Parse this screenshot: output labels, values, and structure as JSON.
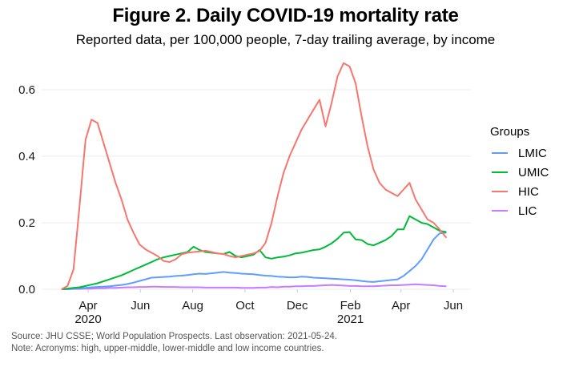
{
  "chart_data": {
    "type": "line",
    "title": "Figure 2. Daily COVID-19 mortality rate",
    "subtitle": "Reported data, per 100,000 people, 7-day trailing average, by income",
    "xlabel": "",
    "ylabel": "",
    "ylim": [
      0,
      0.68
    ],
    "yticks": [
      0.0,
      0.2,
      0.4,
      0.6
    ],
    "ytick_labels": [
      "0.0",
      "0.2",
      "0.4",
      "0.6"
    ],
    "xlim": [
      "2020-02-15",
      "2021-06-10"
    ],
    "xticks": [
      {
        "date": "2020-04-01",
        "label": "Apr",
        "sublabel": "2020"
      },
      {
        "date": "2020-06-01",
        "label": "Jun",
        "sublabel": ""
      },
      {
        "date": "2020-08-01",
        "label": "Aug",
        "sublabel": ""
      },
      {
        "date": "2020-10-01",
        "label": "Oct",
        "sublabel": ""
      },
      {
        "date": "2020-12-01",
        "label": "Dec",
        "sublabel": ""
      },
      {
        "date": "2021-02-01",
        "label": "Feb",
        "sublabel": "2021"
      },
      {
        "date": "2021-04-01",
        "label": "Apr",
        "sublabel": ""
      },
      {
        "date": "2021-06-01",
        "label": "Jun",
        "sublabel": ""
      }
    ],
    "grid": true,
    "legend": {
      "title": "Groups",
      "placement": "right"
    },
    "x": [
      "2020-03-01",
      "2020-03-08",
      "2020-03-15",
      "2020-03-22",
      "2020-03-29",
      "2020-04-05",
      "2020-04-12",
      "2020-04-19",
      "2020-04-26",
      "2020-05-03",
      "2020-05-10",
      "2020-05-17",
      "2020-05-24",
      "2020-05-31",
      "2020-06-07",
      "2020-06-14",
      "2020-06-21",
      "2020-06-28",
      "2020-07-05",
      "2020-07-12",
      "2020-07-19",
      "2020-07-26",
      "2020-08-02",
      "2020-08-09",
      "2020-08-16",
      "2020-08-23",
      "2020-08-30",
      "2020-09-06",
      "2020-09-13",
      "2020-09-20",
      "2020-09-27",
      "2020-10-04",
      "2020-10-11",
      "2020-10-18",
      "2020-10-25",
      "2020-11-01",
      "2020-11-08",
      "2020-11-15",
      "2020-11-22",
      "2020-11-29",
      "2020-12-06",
      "2020-12-13",
      "2020-12-20",
      "2020-12-27",
      "2021-01-03",
      "2021-01-10",
      "2021-01-17",
      "2021-01-24",
      "2021-01-31",
      "2021-02-07",
      "2021-02-14",
      "2021-02-21",
      "2021-02-28",
      "2021-03-07",
      "2021-03-14",
      "2021-03-21",
      "2021-03-28",
      "2021-04-04",
      "2021-04-11",
      "2021-04-18",
      "2021-04-25",
      "2021-05-02",
      "2021-05-09",
      "2021-05-16",
      "2021-05-24"
    ],
    "series": [
      {
        "name": "LMIC",
        "color": "#619CFF",
        "values": [
          0.0,
          0.001,
          0.002,
          0.003,
          0.004,
          0.006,
          0.007,
          0.008,
          0.009,
          0.011,
          0.013,
          0.016,
          0.02,
          0.025,
          0.03,
          0.035,
          0.036,
          0.037,
          0.038,
          0.04,
          0.041,
          0.043,
          0.045,
          0.047,
          0.046,
          0.048,
          0.05,
          0.052,
          0.05,
          0.049,
          0.047,
          0.046,
          0.045,
          0.043,
          0.041,
          0.04,
          0.038,
          0.037,
          0.036,
          0.036,
          0.038,
          0.037,
          0.035,
          0.034,
          0.033,
          0.032,
          0.031,
          0.03,
          0.029,
          0.027,
          0.025,
          0.023,
          0.022,
          0.024,
          0.026,
          0.028,
          0.03,
          0.04,
          0.055,
          0.07,
          0.09,
          0.12,
          0.15,
          0.168,
          0.17
        ]
      },
      {
        "name": "UMIC",
        "color": "#00BA38",
        "values": [
          0.0,
          0.002,
          0.004,
          0.006,
          0.01,
          0.014,
          0.018,
          0.024,
          0.03,
          0.036,
          0.042,
          0.05,
          0.058,
          0.066,
          0.074,
          0.082,
          0.09,
          0.096,
          0.1,
          0.104,
          0.108,
          0.112,
          0.128,
          0.118,
          0.112,
          0.11,
          0.108,
          0.106,
          0.112,
          0.1,
          0.096,
          0.1,
          0.104,
          0.118,
          0.096,
          0.092,
          0.096,
          0.098,
          0.102,
          0.108,
          0.11,
          0.114,
          0.118,
          0.12,
          0.128,
          0.138,
          0.152,
          0.17,
          0.172,
          0.15,
          0.148,
          0.136,
          0.132,
          0.14,
          0.148,
          0.16,
          0.18,
          0.18,
          0.22,
          0.21,
          0.2,
          0.196,
          0.186,
          0.176,
          0.172
        ]
      },
      {
        "name": "HIC",
        "color": "#F8766D",
        "values": [
          0.0,
          0.01,
          0.06,
          0.25,
          0.45,
          0.51,
          0.5,
          0.44,
          0.38,
          0.32,
          0.27,
          0.21,
          0.17,
          0.135,
          0.12,
          0.11,
          0.1,
          0.085,
          0.082,
          0.09,
          0.105,
          0.11,
          0.112,
          0.114,
          0.116,
          0.112,
          0.108,
          0.106,
          0.1,
          0.096,
          0.1,
          0.104,
          0.108,
          0.115,
          0.14,
          0.2,
          0.28,
          0.35,
          0.4,
          0.44,
          0.48,
          0.51,
          0.54,
          0.57,
          0.49,
          0.56,
          0.64,
          0.68,
          0.67,
          0.62,
          0.52,
          0.43,
          0.36,
          0.32,
          0.3,
          0.29,
          0.28,
          0.3,
          0.32,
          0.27,
          0.24,
          0.21,
          0.2,
          0.18,
          0.155
        ]
      },
      {
        "name": "LIC",
        "color": "#C77CFF",
        "values": [
          0.0,
          0.0,
          0.001,
          0.001,
          0.002,
          0.002,
          0.003,
          0.003,
          0.004,
          0.004,
          0.005,
          0.006,
          0.006,
          0.007,
          0.007,
          0.008,
          0.008,
          0.007,
          0.007,
          0.007,
          0.006,
          0.006,
          0.006,
          0.006,
          0.005,
          0.005,
          0.005,
          0.005,
          0.005,
          0.005,
          0.004,
          0.004,
          0.004,
          0.005,
          0.005,
          0.007,
          0.006,
          0.008,
          0.008,
          0.009,
          0.009,
          0.01,
          0.01,
          0.011,
          0.012,
          0.013,
          0.012,
          0.011,
          0.01,
          0.01,
          0.009,
          0.009,
          0.009,
          0.01,
          0.011,
          0.012,
          0.012,
          0.013,
          0.014,
          0.015,
          0.014,
          0.013,
          0.012,
          0.01,
          0.009
        ]
      }
    ]
  },
  "caption": {
    "source": "Source: JHU CSSE; World Population Prospects. Last observation: 2021-05-24.",
    "note": "Note: Acronyms: high, upper-middle, lower-middle and low income countries."
  }
}
